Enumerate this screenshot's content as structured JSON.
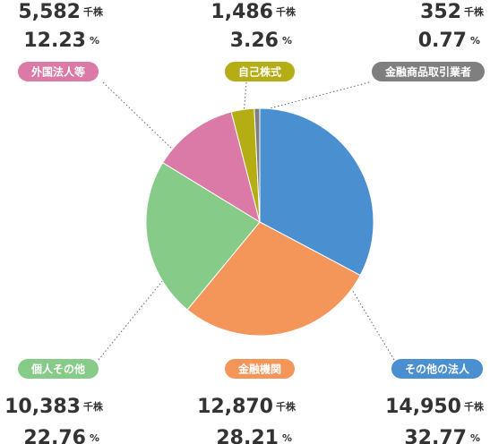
{
  "chart_data": {
    "type": "pie",
    "categories": [
      "その他の法人",
      "金融機関",
      "個人その他",
      "外国法人等",
      "自己株式",
      "金融商品取引業者"
    ],
    "values": [
      32.77,
      28.21,
      22.76,
      12.23,
      3.26,
      0.77
    ],
    "colors": [
      "#4a8fcf",
      "#f4955a",
      "#86cb88",
      "#dc7aa7",
      "#b5ad14",
      "#7f7f7f"
    ],
    "percent_unit": "%",
    "shares": {
      "values": [
        14950,
        12870,
        10383,
        5582,
        1486,
        352
      ],
      "value_labels": [
        "14,950",
        "12,870",
        "10,383",
        "5,582",
        "1,486",
        "352"
      ],
      "unit": "千株"
    }
  }
}
